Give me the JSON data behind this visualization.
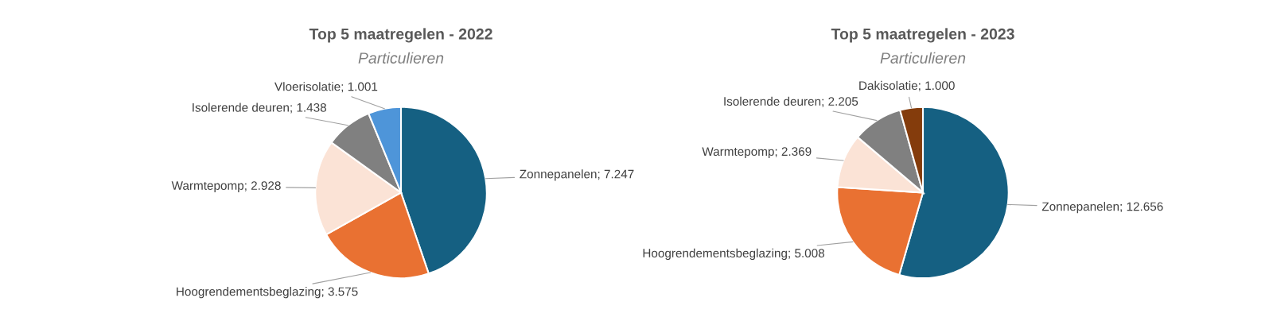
{
  "chart_data": [
    {
      "type": "pie",
      "title": "Top 5 maatregelen - 2022",
      "subtitle": "Particulieren",
      "categories": [
        "Zonnepanelen",
        "Hoogrendementsbeglazing",
        "Warmtepomp",
        "Isolerende deuren",
        "Vloerisolatie"
      ],
      "values": [
        7247,
        3575,
        2928,
        1438,
        1001
      ],
      "value_labels": [
        "7.247",
        "3.575",
        "2.928",
        "1.438",
        "1.001"
      ],
      "colors": [
        "#156082",
        "#e97132",
        "#fbe3d6",
        "#808080",
        "#4e95d9"
      ]
    },
    {
      "type": "pie",
      "title": "Top 5 maatregelen - 2023",
      "subtitle": "Particulieren",
      "categories": [
        "Zonnepanelen",
        "Hoogrendementsbeglazing",
        "Warmtepomp",
        "Isolerende deuren",
        "Dakisolatie"
      ],
      "values": [
        12656,
        5008,
        2369,
        2205,
        1000
      ],
      "value_labels": [
        "12.656",
        "5.008",
        "2.369",
        "2.205",
        "1.000"
      ],
      "colors": [
        "#156082",
        "#e97132",
        "#fbe3d6",
        "#808080",
        "#843c0c"
      ]
    }
  ]
}
